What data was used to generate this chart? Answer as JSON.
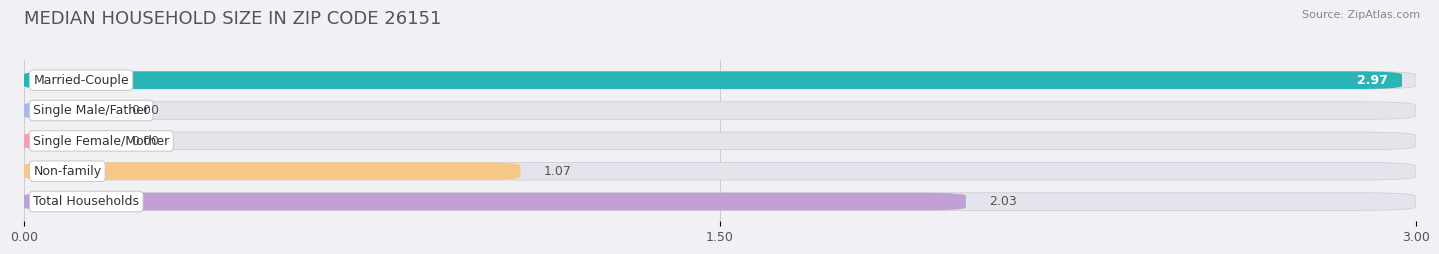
{
  "title": "MEDIAN HOUSEHOLD SIZE IN ZIP CODE 26151",
  "source": "Source: ZipAtlas.com",
  "categories": [
    "Married-Couple",
    "Single Male/Father",
    "Single Female/Mother",
    "Non-family",
    "Total Households"
  ],
  "values": [
    2.97,
    0.0,
    0.0,
    1.07,
    2.03
  ],
  "bar_colors": [
    "#29b5b5",
    "#aab8e8",
    "#f0a0b0",
    "#f5c888",
    "#c0a0d5"
  ],
  "background_color": "#f0f0f5",
  "bar_bg_color": "#e4e4ec",
  "xlim": [
    0,
    3.0
  ],
  "xticks": [
    0.0,
    1.5,
    3.0
  ],
  "xtick_labels": [
    "0.00",
    "1.50",
    "3.00"
  ],
  "title_fontsize": 13,
  "label_fontsize": 9,
  "value_fontsize": 9
}
